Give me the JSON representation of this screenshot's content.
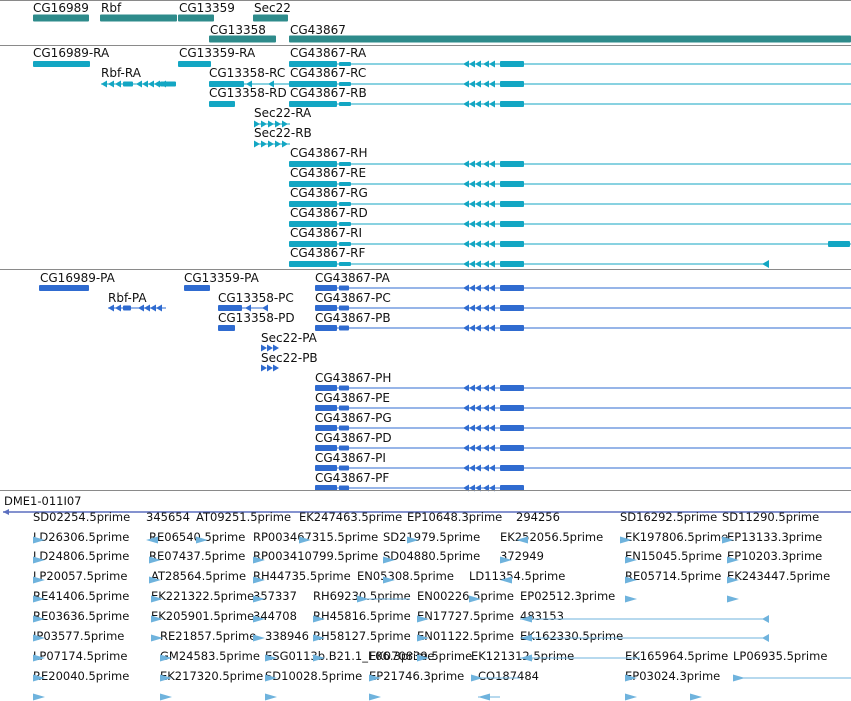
{
  "colors": {
    "gene": "#2e8b8b",
    "mrna": "#13a6c3",
    "protein": "#2f6bd0",
    "clone": "#5b6fbf",
    "est": "#6fb3dd",
    "divider": "#8a8a8a"
  },
  "tracks": {
    "genes": [
      "CG16989",
      "Rbf",
      "CG13359",
      "Sec22",
      "CG13358",
      "CG43867"
    ],
    "transcripts": [
      "CG16989-RA",
      "CG13359-RA",
      "CG43867-RA",
      "Rbf-RA",
      "CG13358-RC",
      "CG43867-RC",
      "CG13358-RD",
      "CG43867-RB",
      "Sec22-RA",
      "Sec22-RB",
      "CG43867-RH",
      "CG43867-RE",
      "CG43867-RG",
      "CG43867-RD",
      "CG43867-RI",
      "CG43867-RF"
    ],
    "proteins": [
      "CG16989-PA",
      "CG13359-PA",
      "CG43867-PA",
      "Rbf-PA",
      "CG13358-PC",
      "CG43867-PC",
      "CG13358-PD",
      "CG43867-PB",
      "Sec22-PA",
      "Sec22-PB",
      "CG43867-PH",
      "CG43867-PE",
      "CG43867-PG",
      "CG43867-PD",
      "CG43867-PI",
      "CG43867-PF"
    ],
    "clone": "DME1-011I07",
    "ests": [
      "SD02254.5prime",
      "345654",
      "AT09251.5prime",
      "EK247463.5prime",
      "EP10648.3prime",
      "294256",
      "SD16292.5prime",
      "SD11290.5prime",
      "LD26306.5prime",
      "RE06540.5prime",
      "RP003467315.5prime",
      "SD21979.5prime",
      "EK252056.5prime",
      "EK197806.5prime",
      "EP13133.3prime",
      "LD24806.5prime",
      "RE07437.5prime",
      "RP003410799.5prime",
      "SD04880.5prime",
      "372949",
      "EN15045.5prime",
      "EP10203.3prime",
      "LP20057.5prime",
      "AT28564.5prime",
      "RH44735.5prime",
      "EN05308.5prime",
      "LD11354.5prime",
      "RE05714.5prime",
      "EK243447.5prime",
      "RE41406.5prime",
      "EK221322.5prime",
      "357337",
      "RH69230.5prime",
      "EN00226.5prime",
      "EP02512.3prime",
      "RE03636.5prime",
      "EK205901.5prime",
      "344708",
      "RH45816.5prime",
      "EN17727.5prime",
      "483153",
      "IP03577.5prime",
      "RE21857.5prime",
      "338946",
      "RH58127.5prime",
      "EN01122.5prime",
      "EK162330.5prime",
      "LP07174.5prime",
      "GM24583.5prime",
      "ESG0113b.B21.1_E06.3prime",
      "EK070839.5prime",
      "EK121312.5prime",
      "EK165964.5prime",
      "LP06935.5prime",
      "RE20040.5prime",
      "EK217320.5prime",
      "SD10028.5prime",
      "EP21746.3prime",
      "CO187484",
      "EP03024.3prime"
    ]
  }
}
